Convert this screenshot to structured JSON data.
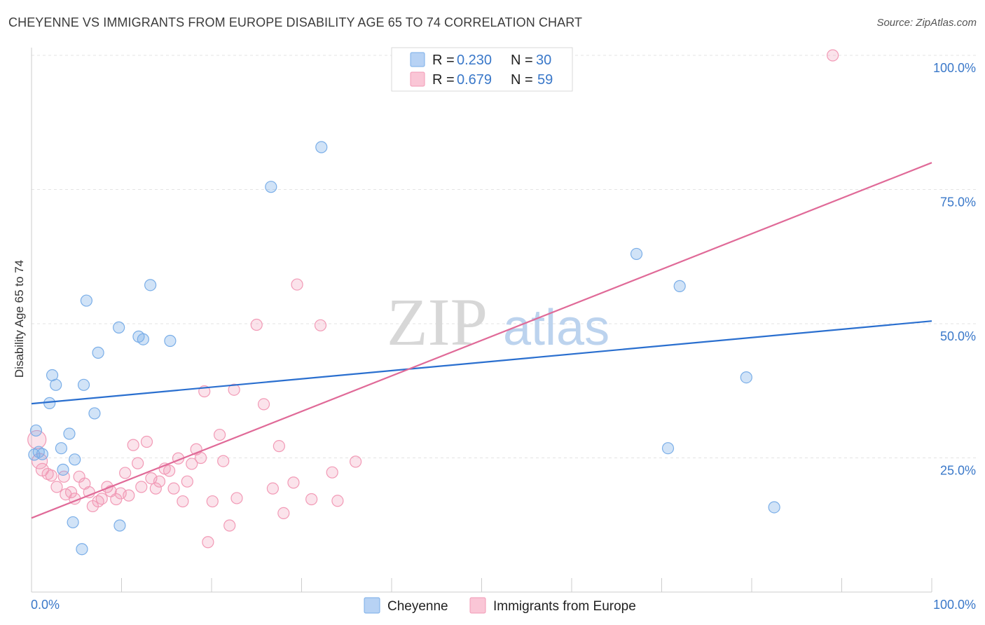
{
  "header": {
    "title": "CHEYENNE VS IMMIGRANTS FROM EUROPE DISABILITY AGE 65 TO 74 CORRELATION CHART",
    "source": "Source: ZipAtlas.com"
  },
  "watermark": {
    "zip": "ZIP",
    "atlas": "atlas"
  },
  "legend": {
    "r_label": "R =",
    "n_label": "N =",
    "series": [
      {
        "name": "Cheyenne",
        "r": "0.230",
        "n": "30"
      },
      {
        "name": "Immigrants from Europe",
        "r": "0.679",
        "n": "59"
      }
    ]
  },
  "chart_data": {
    "type": "scatter",
    "title": "CHEYENNE VS IMMIGRANTS FROM EUROPE DISABILITY AGE 65 TO 74 CORRELATION CHART",
    "xlabel": "",
    "ylabel": "Disability Age 65 to 74",
    "xlim": [
      0,
      100
    ],
    "ylim": [
      0,
      100
    ],
    "x_tick_labels": [
      "0.0%",
      "100.0%"
    ],
    "y_tick_labels": [
      "25.0%",
      "50.0%",
      "75.0%",
      "100.0%"
    ],
    "y_tick_values": [
      25,
      50,
      75,
      100
    ],
    "grid": true,
    "legend_position": "top-center",
    "colors": {
      "Cheyenne": "#7aaee8",
      "Immigrants from Europe": "#f29ab6",
      "Cheyenne_line": "#2a6fcf",
      "Immigrants from Europe_line": "#e06a98",
      "tick_text": "#3a78c9"
    },
    "series": [
      {
        "name": "Cheyenne",
        "trend": {
          "x": [
            0,
            100
          ],
          "y": [
            35.1,
            50.5
          ]
        },
        "points": [
          {
            "x": 0.5,
            "y": 30.1
          },
          {
            "x": 0.8,
            "y": 26.1
          },
          {
            "x": 1.2,
            "y": 25.7
          },
          {
            "x": 2.0,
            "y": 35.2
          },
          {
            "x": 2.3,
            "y": 40.4
          },
          {
            "x": 2.7,
            "y": 38.6
          },
          {
            "x": 3.3,
            "y": 26.8
          },
          {
            "x": 3.5,
            "y": 22.8
          },
          {
            "x": 4.2,
            "y": 29.5
          },
          {
            "x": 4.6,
            "y": 13.0
          },
          {
            "x": 4.8,
            "y": 24.7
          },
          {
            "x": 5.6,
            "y": 8.0
          },
          {
            "x": 5.8,
            "y": 38.6
          },
          {
            "x": 6.1,
            "y": 54.3
          },
          {
            "x": 7.0,
            "y": 33.3
          },
          {
            "x": 7.4,
            "y": 44.6
          },
          {
            "x": 9.7,
            "y": 49.3
          },
          {
            "x": 9.8,
            "y": 12.4
          },
          {
            "x": 11.9,
            "y": 47.6
          },
          {
            "x": 12.4,
            "y": 47.1
          },
          {
            "x": 13.2,
            "y": 57.2
          },
          {
            "x": 15.4,
            "y": 46.8
          },
          {
            "x": 26.6,
            "y": 75.5
          },
          {
            "x": 32.2,
            "y": 82.9
          },
          {
            "x": 67.2,
            "y": 63.0
          },
          {
            "x": 70.7,
            "y": 26.8
          },
          {
            "x": 72.0,
            "y": 57.0
          },
          {
            "x": 79.4,
            "y": 40.0
          },
          {
            "x": 82.5,
            "y": 15.8
          },
          {
            "x": 0.3,
            "y": 25.6
          }
        ]
      },
      {
        "name": "Immigrants from Europe",
        "trend": {
          "x": [
            0,
            100
          ],
          "y": [
            13.8,
            80.0
          ]
        },
        "points": [
          {
            "x": 0.6,
            "y": 28.4
          },
          {
            "x": 0.9,
            "y": 24.4
          },
          {
            "x": 1.2,
            "y": 22.8
          },
          {
            "x": 1.8,
            "y": 22.0
          },
          {
            "x": 2.2,
            "y": 21.7
          },
          {
            "x": 2.8,
            "y": 19.6
          },
          {
            "x": 3.6,
            "y": 21.5
          },
          {
            "x": 3.8,
            "y": 18.2
          },
          {
            "x": 4.4,
            "y": 18.6
          },
          {
            "x": 4.8,
            "y": 17.4
          },
          {
            "x": 5.3,
            "y": 21.5
          },
          {
            "x": 5.9,
            "y": 20.2
          },
          {
            "x": 6.4,
            "y": 18.6
          },
          {
            "x": 6.8,
            "y": 16.0
          },
          {
            "x": 7.4,
            "y": 16.9
          },
          {
            "x": 7.8,
            "y": 17.4
          },
          {
            "x": 8.4,
            "y": 19.6
          },
          {
            "x": 8.8,
            "y": 18.8
          },
          {
            "x": 9.4,
            "y": 17.3
          },
          {
            "x": 9.9,
            "y": 18.4
          },
          {
            "x": 10.4,
            "y": 22.2
          },
          {
            "x": 10.8,
            "y": 18.0
          },
          {
            "x": 11.3,
            "y": 27.4
          },
          {
            "x": 11.8,
            "y": 24.0
          },
          {
            "x": 12.2,
            "y": 19.6
          },
          {
            "x": 12.8,
            "y": 28.0
          },
          {
            "x": 13.3,
            "y": 21.2
          },
          {
            "x": 13.8,
            "y": 19.3
          },
          {
            "x": 14.2,
            "y": 20.6
          },
          {
            "x": 14.8,
            "y": 23.0
          },
          {
            "x": 15.3,
            "y": 22.6
          },
          {
            "x": 15.8,
            "y": 19.3
          },
          {
            "x": 16.3,
            "y": 24.9
          },
          {
            "x": 16.8,
            "y": 16.9
          },
          {
            "x": 17.3,
            "y": 20.6
          },
          {
            "x": 17.8,
            "y": 23.9
          },
          {
            "x": 18.3,
            "y": 26.6
          },
          {
            "x": 18.8,
            "y": 25.0
          },
          {
            "x": 19.2,
            "y": 37.4
          },
          {
            "x": 19.6,
            "y": 9.3
          },
          {
            "x": 20.1,
            "y": 16.9
          },
          {
            "x": 20.9,
            "y": 29.3
          },
          {
            "x": 21.3,
            "y": 24.4
          },
          {
            "x": 22.0,
            "y": 12.4
          },
          {
            "x": 22.5,
            "y": 37.7
          },
          {
            "x": 22.8,
            "y": 17.5
          },
          {
            "x": 25.0,
            "y": 49.8
          },
          {
            "x": 25.8,
            "y": 35.0
          },
          {
            "x": 26.8,
            "y": 19.3
          },
          {
            "x": 27.5,
            "y": 27.2
          },
          {
            "x": 28.0,
            "y": 14.7
          },
          {
            "x": 29.1,
            "y": 20.4
          },
          {
            "x": 29.5,
            "y": 57.3
          },
          {
            "x": 31.1,
            "y": 17.3
          },
          {
            "x": 32.1,
            "y": 49.7
          },
          {
            "x": 33.4,
            "y": 22.3
          },
          {
            "x": 34.0,
            "y": 17.0
          },
          {
            "x": 36.0,
            "y": 24.3
          },
          {
            "x": 89.0,
            "y": 100.0
          }
        ]
      }
    ]
  }
}
